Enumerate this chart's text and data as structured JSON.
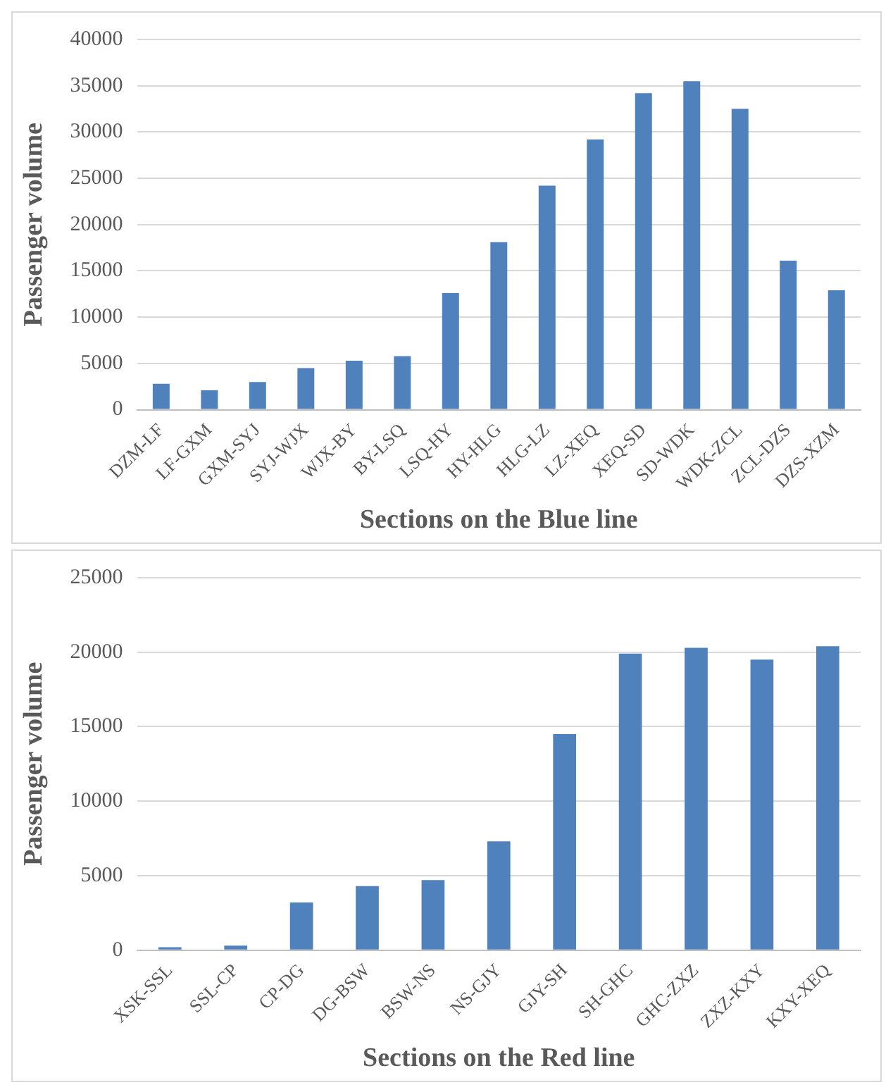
{
  "chart_data": [
    {
      "type": "bar",
      "xlabel": "Sections on the Blue line",
      "ylabel": "Passenger volume",
      "categories": [
        "DZM-LF",
        "LF-GXM",
        "GXM-SYJ",
        "SYJ-WJX",
        "WJX-BY",
        "BY-LSQ",
        "LSQ-HY",
        "HY-HLG",
        "HLG-LZ",
        "LZ-XEQ",
        "XEQ-SD",
        "SD-WDK",
        "WDK-ZCL",
        "ZCL-DZS",
        "DZS-XZM"
      ],
      "values": [
        2800,
        2100,
        3000,
        4500,
        5300,
        5800,
        12600,
        18100,
        24200,
        29200,
        34200,
        35500,
        32500,
        16100,
        12900
      ],
      "color": "#4f81bd",
      "ylim": [
        0,
        40000
      ],
      "yticks": [
        0,
        5000,
        10000,
        15000,
        20000,
        25000,
        30000,
        35000,
        40000
      ],
      "grid": "y"
    },
    {
      "type": "bar",
      "xlabel": "Sections on the Red line",
      "ylabel": "Passenger volume",
      "categories": [
        "XSK-SSL",
        "SSL-CP",
        "CP-DG",
        "DG-BSW",
        "BSW-NS",
        "NS-GJY",
        "GJY-SH",
        "SH-GHC",
        "GHC-ZXZ",
        "ZXZ-KXY",
        "KXY-XEQ"
      ],
      "values": [
        200,
        300,
        3200,
        4300,
        4700,
        7300,
        14500,
        19900,
        20300,
        19500,
        20400
      ],
      "color": "#4f81bd",
      "ylim": [
        0,
        25000
      ],
      "yticks": [
        0,
        5000,
        10000,
        15000,
        20000,
        25000
      ],
      "grid": "y"
    }
  ]
}
